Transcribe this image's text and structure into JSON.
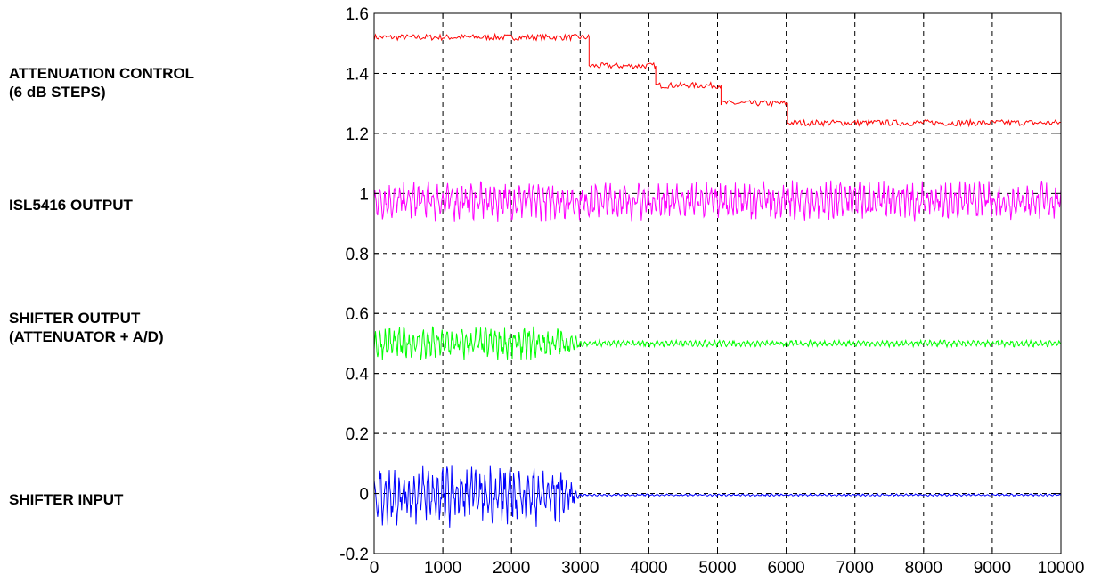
{
  "side_labels": [
    {
      "id": "attenuation",
      "lines": [
        "ATTENUATION CONTROL",
        "(6 dB STEPS)"
      ]
    },
    {
      "id": "isl5416",
      "lines": [
        "ISL5416 OUTPUT"
      ]
    },
    {
      "id": "shifter-out",
      "lines": [
        "SHIFTER OUTPUT",
        "(ATTENUATOR + A/D)"
      ]
    },
    {
      "id": "shifter-in",
      "lines": [
        "SHIFTER INPUT"
      ]
    }
  ],
  "chart_data": {
    "type": "line",
    "title": "",
    "xlabel": "",
    "ylabel": "",
    "xlim": [
      0,
      10000
    ],
    "ylim": [
      -0.2,
      1.6
    ],
    "x_ticks": [
      "0",
      "1000",
      "2000",
      "3000",
      "4000",
      "5000",
      "6000",
      "7000",
      "8000",
      "9000",
      "10000"
    ],
    "y_ticks": [
      "-0.2",
      "0",
      "0.2",
      "0.4",
      "0.6",
      "0.8",
      "1",
      "1.2",
      "1.4",
      "1.6"
    ],
    "grid": true,
    "series": [
      {
        "label_ref": "attenuation",
        "color": "#ff0000",
        "style": "step",
        "steps": [
          {
            "x_start": 0,
            "x_end": 3130,
            "level": 1.52
          },
          {
            "x_start": 3130,
            "x_end": 4100,
            "level": 1.425
          },
          {
            "x_start": 4100,
            "x_end": 5050,
            "level": 1.36
          },
          {
            "x_start": 5050,
            "x_end": 6020,
            "level": 1.3
          },
          {
            "x_start": 6020,
            "x_end": 10000,
            "level": 1.235
          }
        ],
        "ripple": 0.01
      },
      {
        "label_ref": "isl5416",
        "color": "#ff00ff",
        "style": "oscillation",
        "center": 0.975,
        "amplitude": 0.07,
        "x_range": [
          0,
          10000
        ]
      },
      {
        "label_ref": "shifter-out",
        "color": "#00ff00",
        "style": "oscillation",
        "segments": [
          {
            "x_start": 0,
            "x_end": 2700,
            "center": 0.5,
            "amplitude": 0.06
          },
          {
            "x_start": 2700,
            "x_end": 3000,
            "center": 0.5,
            "amplitude_from": 0.06,
            "amplitude_to": 0.015
          },
          {
            "x_start": 3000,
            "x_end": 10000,
            "center": 0.5,
            "amplitude": 0.012
          }
        ]
      },
      {
        "label_ref": "shifter-in",
        "color": "#0000ff",
        "style": "oscillation",
        "segments": [
          {
            "x_start": 0,
            "x_end": 2700,
            "center": -0.005,
            "amplitude": 0.11
          },
          {
            "x_start": 2700,
            "x_end": 3000,
            "center": -0.005,
            "amplitude_from": 0.11,
            "amplitude_to": 0.006
          },
          {
            "x_start": 3000,
            "x_end": 10000,
            "center": -0.005,
            "amplitude": 0.004
          }
        ]
      }
    ]
  }
}
